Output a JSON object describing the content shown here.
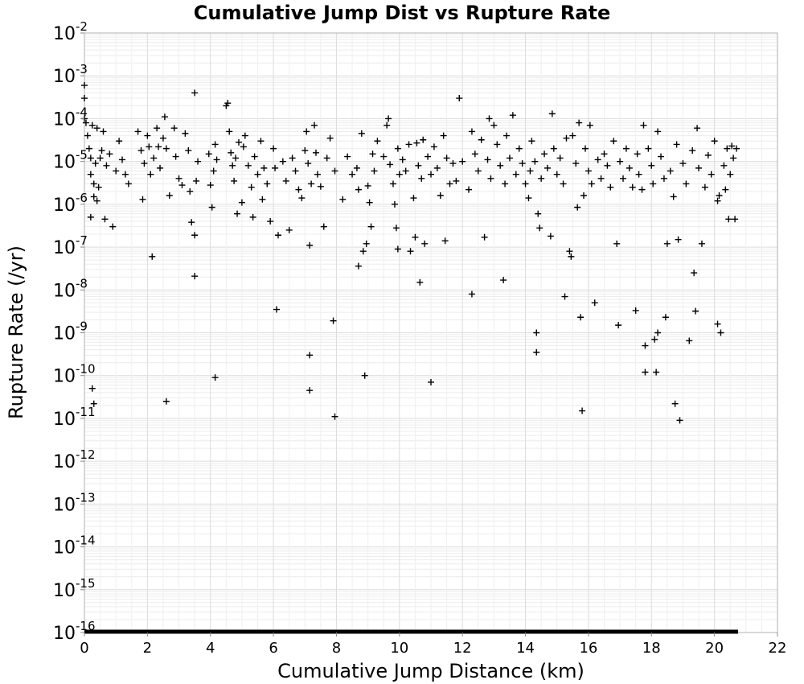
{
  "chart_data": {
    "type": "scatter",
    "title": "Cumulative Jump Dist vs Rupture Rate",
    "xlabel": "Cumulative Jump Distance (km)",
    "ylabel": "Rupture Rate (/yr)",
    "xlim": [
      0,
      22
    ],
    "ylim": [
      1e-16,
      0.01
    ],
    "yscale": "log",
    "grid": true,
    "marker": "+",
    "marker_color": "#000000",
    "x_ticks": [
      "0",
      "2",
      "4",
      "6",
      "8",
      "10",
      "12",
      "14",
      "16",
      "18",
      "20",
      "22"
    ],
    "y_ticks": [
      {
        "base": "10",
        "exp": "-2"
      },
      {
        "base": "10",
        "exp": "-3"
      },
      {
        "base": "10",
        "exp": "-4"
      },
      {
        "base": "10",
        "exp": "-5"
      },
      {
        "base": "10",
        "exp": "-6"
      },
      {
        "base": "10",
        "exp": "-7"
      },
      {
        "base": "10",
        "exp": "-8"
      },
      {
        "base": "10",
        "exp": "-9"
      },
      {
        "base": "10",
        "exp": "-10"
      },
      {
        "base": "10",
        "exp": "-11"
      },
      {
        "base": "10",
        "exp": "-12"
      },
      {
        "base": "10",
        "exp": "-13"
      },
      {
        "base": "10",
        "exp": "-14"
      },
      {
        "base": "10",
        "exp": "-15"
      },
      {
        "base": "10",
        "exp": "-16"
      }
    ],
    "points": [
      [
        0.0,
        0.0006
      ],
      [
        0.0,
        0.0003
      ],
      [
        0.0,
        0.0001
      ],
      [
        0.05,
        8e-05
      ],
      [
        0.1,
        4e-05
      ],
      [
        0.15,
        2e-05
      ],
      [
        0.2,
        1.2e-05
      ],
      [
        0.2,
        5e-06
      ],
      [
        0.25,
        7e-05
      ],
      [
        0.3,
        3e-06
      ],
      [
        0.3,
        1.5e-06
      ],
      [
        0.35,
        9e-06
      ],
      [
        0.4,
        6e-05
      ],
      [
        0.45,
        2.5e-06
      ],
      [
        0.5,
        1.2e-05
      ],
      [
        0.55,
        1.8e-05
      ],
      [
        0.6,
        5e-05
      ],
      [
        0.65,
        4.5e-07
      ],
      [
        0.7,
        8e-06
      ],
      [
        0.8,
        1.5e-05
      ],
      [
        0.9,
        3e-07
      ],
      [
        1.0,
        6e-06
      ],
      [
        1.1,
        3e-05
      ],
      [
        1.2,
        1.1e-05
      ],
      [
        1.3,
        5e-06
      ],
      [
        1.4,
        3e-06
      ],
      [
        0.2,
        5e-07
      ],
      [
        0.4,
        1.2e-06
      ],
      [
        0.25,
        5e-11
      ],
      [
        0.3,
        2.2e-11
      ],
      [
        1.7,
        5e-05
      ],
      [
        1.8,
        1.8e-05
      ],
      [
        1.85,
        1.3e-06
      ],
      [
        1.9,
        9e-06
      ],
      [
        2.0,
        4e-05
      ],
      [
        2.05,
        2.2e-05
      ],
      [
        2.1,
        5e-06
      ],
      [
        2.15,
        6e-08
      ],
      [
        2.2,
        1.2e-05
      ],
      [
        2.3,
        6e-05
      ],
      [
        2.35,
        2.2e-05
      ],
      [
        2.4,
        7e-06
      ],
      [
        2.5,
        3.5e-05
      ],
      [
        2.55,
        0.00011
      ],
      [
        2.6,
        2e-05
      ],
      [
        2.7,
        1.6e-06
      ],
      [
        2.85,
        6e-05
      ],
      [
        2.9,
        1.3e-05
      ],
      [
        3.0,
        4e-06
      ],
      [
        3.1,
        2.8e-06
      ],
      [
        3.2,
        4.5e-05
      ],
      [
        3.3,
        1.8e-05
      ],
      [
        3.35,
        2e-06
      ],
      [
        3.4,
        3.8e-07
      ],
      [
        3.5,
        0.0004
      ],
      [
        3.5,
        1.9e-07
      ],
      [
        3.5,
        2.1e-08
      ],
      [
        3.55,
        3.5e-06
      ],
      [
        3.6,
        1e-05
      ],
      [
        2.6,
        2.5e-11
      ],
      [
        3.95,
        1.5e-05
      ],
      [
        4.0,
        2.8e-06
      ],
      [
        4.05,
        8.5e-07
      ],
      [
        4.1,
        6e-06
      ],
      [
        4.15,
        2.5e-05
      ],
      [
        4.2,
        1.1e-05
      ],
      [
        4.15,
        9e-11
      ],
      [
        4.5,
        0.0002
      ],
      [
        4.55,
        0.00023
      ],
      [
        4.6,
        5e-05
      ],
      [
        4.65,
        1.6e-05
      ],
      [
        4.7,
        8e-06
      ],
      [
        4.75,
        3.5e-06
      ],
      [
        4.8,
        1.2e-05
      ],
      [
        4.85,
        6e-07
      ],
      [
        4.9,
        2.8e-05
      ],
      [
        5.0,
        1.1e-06
      ],
      [
        5.05,
        2.2e-05
      ],
      [
        5.1,
        4e-05
      ],
      [
        5.2,
        8e-06
      ],
      [
        5.3,
        2.5e-06
      ],
      [
        5.35,
        5e-07
      ],
      [
        5.4,
        1.3e-05
      ],
      [
        5.5,
        5e-06
      ],
      [
        5.6,
        3e-05
      ],
      [
        5.65,
        1.3e-06
      ],
      [
        5.7,
        7e-06
      ],
      [
        5.8,
        3e-06
      ],
      [
        5.9,
        4e-07
      ],
      [
        6.0,
        2e-05
      ],
      [
        6.05,
        7e-06
      ],
      [
        6.1,
        3.5e-09
      ],
      [
        6.15,
        1.9e-07
      ],
      [
        6.3,
        1e-05
      ],
      [
        6.4,
        3.5e-06
      ],
      [
        6.5,
        2.5e-07
      ],
      [
        6.6,
        1.2e-05
      ],
      [
        6.7,
        6e-06
      ],
      [
        6.8,
        2.2e-06
      ],
      [
        6.9,
        1.4e-06
      ],
      [
        7.0,
        1.8e-05
      ],
      [
        7.05,
        5e-05
      ],
      [
        7.1,
        9e-06
      ],
      [
        7.15,
        1.1e-07
      ],
      [
        7.15,
        3e-10
      ],
      [
        7.15,
        4.5e-11
      ],
      [
        7.2,
        3e-06
      ],
      [
        7.3,
        7e-05
      ],
      [
        7.35,
        1.6e-05
      ],
      [
        7.4,
        5e-06
      ],
      [
        7.5,
        2.6e-06
      ],
      [
        7.6,
        3e-07
      ],
      [
        7.7,
        1.2e-05
      ],
      [
        7.8,
        3.5e-05
      ],
      [
        7.9,
        1.9e-09
      ],
      [
        7.95,
        1.1e-11
      ],
      [
        7.95,
        6e-06
      ],
      [
        8.2,
        1.3e-06
      ],
      [
        8.35,
        1.3e-05
      ],
      [
        8.5,
        5e-06
      ],
      [
        8.65,
        7e-06
      ],
      [
        8.7,
        2.2e-06
      ],
      [
        8.7,
        3.6e-08
      ],
      [
        8.8,
        4.5e-05
      ],
      [
        8.85,
        8e-08
      ],
      [
        8.9,
        1e-10
      ],
      [
        8.95,
        1.2e-07
      ],
      [
        9.0,
        2.7e-06
      ],
      [
        9.05,
        1.1e-06
      ],
      [
        9.1,
        3e-07
      ],
      [
        9.15,
        1.5e-05
      ],
      [
        9.2,
        6e-06
      ],
      [
        9.3,
        3e-05
      ],
      [
        9.5,
        1.3e-05
      ],
      [
        9.6,
        7e-05
      ],
      [
        9.65,
        0.0001
      ],
      [
        9.7,
        8.5e-06
      ],
      [
        9.8,
        3e-06
      ],
      [
        9.85,
        1e-06
      ],
      [
        9.9,
        2.8e-07
      ],
      [
        9.95,
        2e-05
      ],
      [
        9.95,
        9e-08
      ],
      [
        10.0,
        5e-06
      ],
      [
        10.1,
        1.1e-05
      ],
      [
        10.2,
        6e-06
      ],
      [
        10.3,
        2.5e-05
      ],
      [
        10.35,
        8e-08
      ],
      [
        10.45,
        1.4e-06
      ],
      [
        10.5,
        1.7e-07
      ],
      [
        10.55,
        2.7e-05
      ],
      [
        10.6,
        8e-06
      ],
      [
        10.65,
        1.5e-08
      ],
      [
        10.7,
        4e-06
      ],
      [
        10.75,
        3.2e-05
      ],
      [
        10.8,
        1.2e-07
      ],
      [
        10.9,
        1.3e-05
      ],
      [
        11.0,
        5e-06
      ],
      [
        11.0,
        7e-11
      ],
      [
        11.1,
        2.2e-05
      ],
      [
        11.2,
        7e-06
      ],
      [
        11.3,
        1.6e-06
      ],
      [
        11.4,
        4e-05
      ],
      [
        11.45,
        1.4e-07
      ],
      [
        11.5,
        1.2e-05
      ],
      [
        11.6,
        3e-06
      ],
      [
        11.7,
        9e-06
      ],
      [
        11.8,
        3.5e-06
      ],
      [
        11.9,
        0.0003
      ],
      [
        12.0,
        1e-05
      ],
      [
        12.2,
        2.2e-06
      ],
      [
        12.3,
        5e-05
      ],
      [
        12.3,
        8e-09
      ],
      [
        12.4,
        1.5e-05
      ],
      [
        12.5,
        6e-06
      ],
      [
        12.6,
        3.2e-05
      ],
      [
        12.7,
        1.7e-07
      ],
      [
        12.8,
        1.1e-05
      ],
      [
        12.85,
        0.0001
      ],
      [
        12.9,
        4e-06
      ],
      [
        13.0,
        7e-05
      ],
      [
        13.1,
        2.5e-05
      ],
      [
        13.2,
        8e-06
      ],
      [
        13.3,
        1.7e-08
      ],
      [
        13.35,
        3e-06
      ],
      [
        13.4,
        4e-05
      ],
      [
        13.5,
        1.2e-05
      ],
      [
        13.6,
        0.00012
      ],
      [
        13.7,
        5e-06
      ],
      [
        13.8,
        2e-05
      ],
      [
        13.9,
        9e-06
      ],
      [
        14.0,
        3e-06
      ],
      [
        14.1,
        1.4e-06
      ],
      [
        14.15,
        6e-06
      ],
      [
        14.2,
        3e-05
      ],
      [
        14.3,
        1e-05
      ],
      [
        14.35,
        1e-09
      ],
      [
        14.35,
        3.5e-10
      ],
      [
        14.4,
        6e-07
      ],
      [
        14.45,
        2.8e-07
      ],
      [
        14.5,
        4e-06
      ],
      [
        14.6,
        1.5e-05
      ],
      [
        14.7,
        7e-06
      ],
      [
        14.8,
        1.8e-07
      ],
      [
        14.85,
        0.00013
      ],
      [
        14.9,
        2e-05
      ],
      [
        15.0,
        5e-06
      ],
      [
        15.1,
        1.2e-05
      ],
      [
        15.2,
        3e-06
      ],
      [
        15.25,
        7e-09
      ],
      [
        15.3,
        3.5e-05
      ],
      [
        15.4,
        8e-08
      ],
      [
        15.45,
        6e-08
      ],
      [
        15.5,
        4e-05
      ],
      [
        15.6,
        9e-06
      ],
      [
        15.65,
        8.5e-07
      ],
      [
        15.7,
        8e-05
      ],
      [
        15.75,
        2.3e-09
      ],
      [
        15.8,
        1.5e-11
      ],
      [
        15.85,
        1.6e-06
      ],
      [
        15.9,
        2e-05
      ],
      [
        16.0,
        6e-06
      ],
      [
        16.05,
        7e-05
      ],
      [
        16.1,
        3e-06
      ],
      [
        16.2,
        5e-09
      ],
      [
        16.3,
        1.1e-05
      ],
      [
        16.4,
        4e-06
      ],
      [
        16.5,
        1.5e-05
      ],
      [
        16.6,
        8e-06
      ],
      [
        16.7,
        2.5e-06
      ],
      [
        16.8,
        3e-05
      ],
      [
        16.9,
        1.2e-07
      ],
      [
        16.95,
        1.5e-09
      ],
      [
        17.0,
        1e-05
      ],
      [
        17.1,
        4e-06
      ],
      [
        17.2,
        2e-05
      ],
      [
        17.3,
        7e-06
      ],
      [
        17.4,
        2.5e-06
      ],
      [
        17.5,
        3.3e-09
      ],
      [
        17.55,
        1.5e-05
      ],
      [
        17.6,
        5e-06
      ],
      [
        17.7,
        2.2e-06
      ],
      [
        17.75,
        7e-05
      ],
      [
        17.8,
        5e-10
      ],
      [
        17.8,
        1.2e-10
      ],
      [
        17.9,
        2e-05
      ],
      [
        18.0,
        8e-06
      ],
      [
        18.05,
        3e-06
      ],
      [
        18.1,
        7e-10
      ],
      [
        18.15,
        1.2e-10
      ],
      [
        18.2,
        1e-09
      ],
      [
        18.2,
        5e-05
      ],
      [
        18.3,
        1.3e-05
      ],
      [
        18.4,
        4e-06
      ],
      [
        18.45,
        2.3e-09
      ],
      [
        18.5,
        1.2e-07
      ],
      [
        18.6,
        6e-06
      ],
      [
        18.7,
        1.5e-06
      ],
      [
        18.75,
        2.2e-11
      ],
      [
        18.8,
        2.5e-05
      ],
      [
        18.85,
        1.5e-07
      ],
      [
        18.9,
        9e-12
      ],
      [
        19.0,
        9e-06
      ],
      [
        19.1,
        3e-06
      ],
      [
        19.2,
        6.5e-10
      ],
      [
        19.3,
        1.8e-05
      ],
      [
        19.35,
        2.5e-08
      ],
      [
        19.4,
        3.2e-09
      ],
      [
        19.45,
        6e-05
      ],
      [
        19.5,
        7e-06
      ],
      [
        19.6,
        1.2e-07
      ],
      [
        19.7,
        2.5e-06
      ],
      [
        19.8,
        1.4e-05
      ],
      [
        19.9,
        5e-06
      ],
      [
        20.0,
        3e-05
      ],
      [
        20.1,
        1.6e-09
      ],
      [
        20.15,
        1.6e-06
      ],
      [
        20.2,
        1e-09
      ],
      [
        20.3,
        8e-06
      ],
      [
        20.4,
        2e-05
      ],
      [
        20.45,
        4.5e-07
      ],
      [
        20.5,
        5e-06
      ],
      [
        20.55,
        2.3e-05
      ],
      [
        20.6,
        1.2e-05
      ],
      [
        20.65,
        4.5e-07
      ],
      [
        20.7,
        2e-05
      ],
      [
        20.1,
        1.2e-06
      ],
      [
        20.35,
        2.2e-06
      ]
    ],
    "floor_band": {
      "value": 1e-16,
      "x_range": [
        0,
        20.75
      ]
    }
  }
}
